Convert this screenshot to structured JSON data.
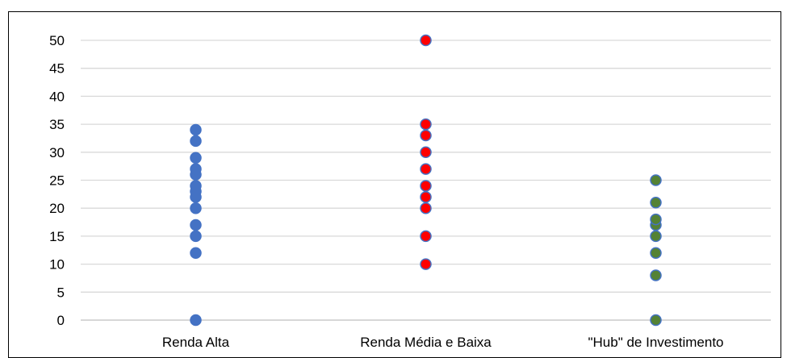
{
  "chart_data": {
    "type": "scatter",
    "title": "",
    "xlabel": "",
    "ylabel": "",
    "categories": [
      "Renda Alta",
      "Renda Média e Baixa",
      "\"Hub\" de Investimento"
    ],
    "ylim": [
      0,
      50
    ],
    "y_ticks": [
      "0",
      "5",
      "10",
      "15",
      "20",
      "25",
      "30",
      "35",
      "40",
      "45",
      "50"
    ],
    "grid": true,
    "legend": "none",
    "series": [
      {
        "category_index": 0,
        "values": [
          0,
          12,
          15,
          17,
          20,
          22,
          23,
          24,
          26,
          27,
          29,
          32,
          34
        ],
        "fill": "#4472C4",
        "stroke": "#4472C4"
      },
      {
        "category_index": 1,
        "values": [
          10,
          15,
          20,
          22,
          24,
          27,
          30,
          33,
          35,
          50
        ],
        "fill": "#FF0000",
        "stroke": "#4472C4"
      },
      {
        "category_index": 2,
        "values": [
          0,
          8,
          12,
          15,
          17,
          18,
          21,
          25
        ],
        "fill": "#548235",
        "stroke": "#4472C4"
      }
    ],
    "colors": {
      "grid": "#D9D9D9",
      "axis": "#BFBFBF"
    }
  }
}
